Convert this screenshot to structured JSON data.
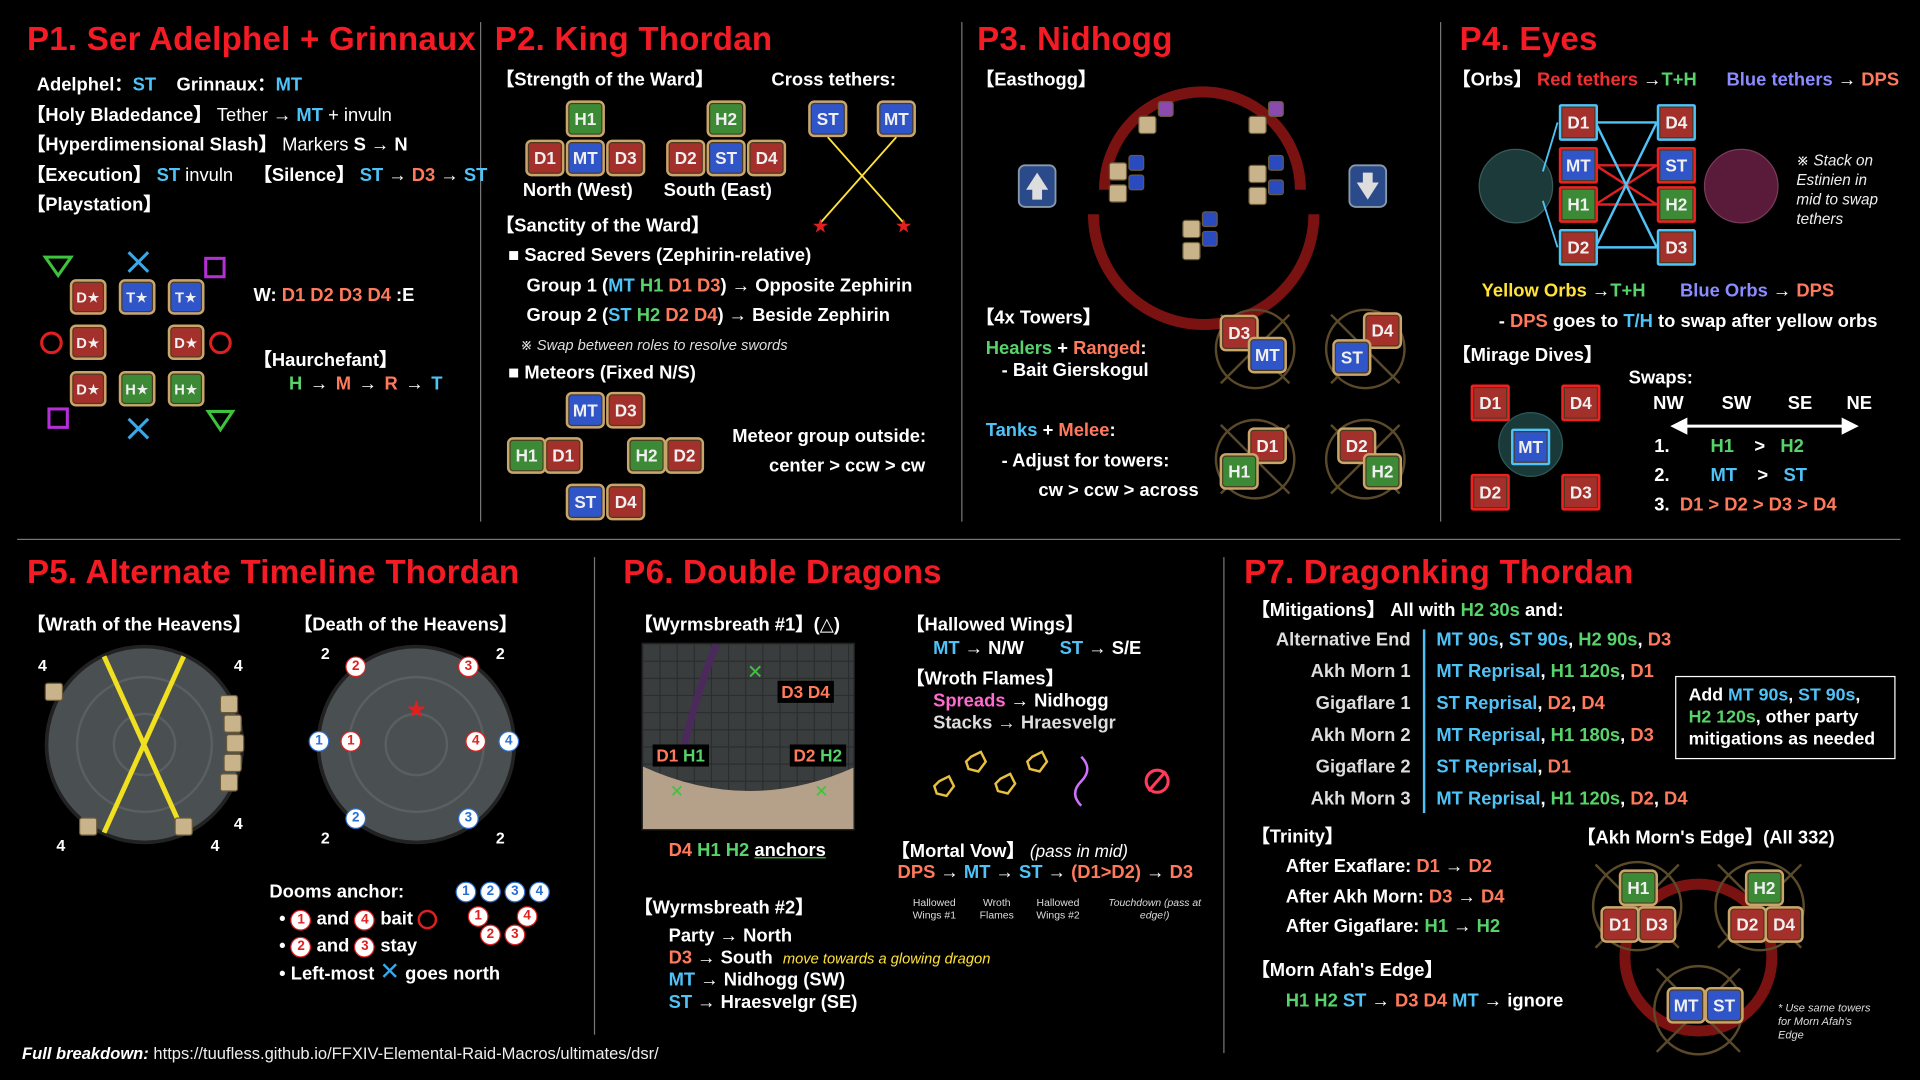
{
  "p1": {
    "title": "P1. Ser Adelphel + Grinnaux",
    "adelphel": "Adelphel：",
    "adelphel_role": "ST",
    "grinnaux": "Grinnaux：",
    "grinnaux_role": "MT",
    "holy_label": "【Holy Bladedance】",
    "holy_a": "Tether →",
    "holy_b": "MT",
    "holy_c": "+ invuln",
    "hyper_label": "【Hyperdimensional Slash】",
    "hyper_a": "Markers",
    "hyper_b": "S → N",
    "exec_label": "【Execution】",
    "exec_a": "ST",
    "exec_b": "invuln",
    "silence_label": "【Silence】",
    "silence_a": "ST",
    "silence_b": "→",
    "silence_c": "D3",
    "silence_d": "→",
    "silence_e": "ST",
    "play_label": "【Playstation】",
    "w_label": "W:",
    "w_roles": "D1 D2 D3 D4",
    "w_end": ":E",
    "haurch_label": "【Haurchefant】",
    "haurch": [
      "H",
      "→",
      "M",
      "→",
      "R",
      "→",
      "T"
    ],
    "markers": [
      "D★",
      "T★",
      "T★",
      "D★",
      "D★",
      "D★",
      "H★",
      "H★"
    ]
  },
  "p2": {
    "title": "P2. King Thordan",
    "strength": "【Strength of the Ward】",
    "cross": "Cross tethers:",
    "north": "North (West)",
    "south": "South (East)",
    "sanctity": "【Sanctity of the Ward】",
    "sacred": "■ Sacred Severs (Zephirin-relative)",
    "g1a": "Group 1 (",
    "g1b": "MT H1 D1 D3",
    "g1c": ") → Opposite Zephirin",
    "g2a": "Group 2 (",
    "g2b": "ST H2 D2 D4",
    "g2c": ") → Beside Zephirin",
    "swap_note": "※ Swap between roles to resolve swords",
    "meteors": "■ Meteors (Fixed N/S)",
    "meteor_group": "Meteor group outside:",
    "meteor_order": "center > ccw > cw",
    "roles": {
      "MT": "MT",
      "ST": "ST",
      "H1": "H1",
      "H2": "H2",
      "D1": "D1",
      "D2": "D2",
      "D3": "D3",
      "D4": "D4"
    }
  },
  "p3": {
    "title": "P3. Nidhogg",
    "easthogg": "【Easthogg】",
    "towers": "【4x Towers】",
    "hr_a": "Healers",
    "hr_b": "+",
    "hr_c": "Ranged",
    "hr_d": ":",
    "bait": "- Bait Gierskogul",
    "tm_a": "Tanks",
    "tm_b": "+",
    "tm_c": "Melee",
    "tm_d": ":",
    "adjust": "- Adjust for towers:",
    "order": "cw > ccw > across"
  },
  "p4": {
    "title": "P4. Eyes",
    "orbs": "【Orbs】",
    "red_t": "Red tethers",
    "red_to": "→",
    "red_r": "T+H",
    "blue_t": "Blue tethers",
    "blue_to": "→",
    "blue_r": "DPS",
    "stack_note": "※ Stack on Estinien in mid to swap tethers",
    "yel_a": "Yellow Orbs",
    "yel_b": "→",
    "yel_c": "T+H",
    "blo_a": "Blue Orbs",
    "blo_b": "→",
    "blo_c": "DPS",
    "dps_a": "-",
    "dps_b": "DPS",
    "dps_c": "goes to",
    "dps_d": "T/H",
    "dps_e": "to swap after yellow orbs",
    "mirage": "【Mirage Dives】",
    "swaps": "Swaps:",
    "dirs": [
      "NW",
      "SW",
      "SE",
      "NE"
    ],
    "s1n": "1.",
    "s1a": "H1",
    "s1g": ">",
    "s1b": "H2",
    "s2n": "2.",
    "s2a": "MT",
    "s2g": ">",
    "s2b": "ST",
    "s3n": "3.",
    "s3a": "D1 > D2 > D3 > D4"
  },
  "p5": {
    "title": "P5. Alternate Timeline Thordan",
    "wrath": "【Wrath of the Heavens】",
    "death": "【Death of the Heavens】",
    "dooms": "Dooms anchor:",
    "b1": "and",
    "b1b": "bait",
    "b2": "and",
    "b2b": "stay",
    "b3": "Left-most",
    "b3b": "goes north",
    "nums": [
      "1",
      "2",
      "3",
      "4"
    ],
    "four": "4",
    "two": "2"
  },
  "p6": {
    "title": "P6. Double Dragons",
    "wb1": "【Wyrmsbreath #1】(△)",
    "anchors_a": "D4",
    "anchors_b": "H1 H2",
    "anchors_c": "anchors",
    "map_d3d4": "D3 D4",
    "map_d1h1": "D1 H1",
    "map_d2h2": "D2 H2",
    "hw": "【Hallowed Wings】",
    "hw_mt": "MT",
    "hw_mt_to": "→ N/W",
    "hw_st": "ST",
    "hw_st_to": "→ S/E",
    "wroth": "【Wroth Flames】",
    "spreads": "Spreads",
    "spreads_to": "→ Nidhogg",
    "stacks": "Stacks → Hraesvelgr",
    "mortal": "【Mortal Vow】",
    "mortal_note": "(pass in mid)",
    "mv": [
      "DPS",
      "→",
      "MT",
      "→",
      "ST",
      "→",
      "(D1>D2)",
      "→",
      "D3"
    ],
    "mv_sub": [
      "Hallowed Wings #1",
      "Wroth Flames",
      "Hallowed Wings #2",
      "Touchdown (pass at edge!)"
    ],
    "wb2": "【Wyrmsbreath #2】",
    "party": "Party → North",
    "d3": "D3",
    "d3_to": "→ South",
    "d3_note": "move towards a glowing dragon",
    "mt": "MT",
    "mt_to": "→ Nidhogg (SW)",
    "st": "ST",
    "st_to": "→ Hraesvelgr (SE)"
  },
  "p7": {
    "title": "P7. Dragonking Thordan",
    "mit_a": "【Mitigations】 All with",
    "mit_b": "H2 30s",
    "mit_c": "and:",
    "rows": [
      {
        "name": "Alternative End",
        "parts": [
          [
            "MT 90s",
            "tank"
          ],
          [
            ", ",
            "wht"
          ],
          [
            "ST 90s",
            "tank"
          ],
          [
            ", ",
            "wht"
          ],
          [
            "H2 90s",
            "heal"
          ],
          [
            ", ",
            "wht"
          ],
          [
            "D3",
            "dps"
          ]
        ]
      },
      {
        "name": "Akh Morn 1",
        "parts": [
          [
            "MT Reprisal",
            "tank"
          ],
          [
            ", ",
            "wht"
          ],
          [
            "H1 120s",
            "heal"
          ],
          [
            ", ",
            "wht"
          ],
          [
            "D1",
            "dps"
          ]
        ]
      },
      {
        "name": "Gigaflare 1",
        "parts": [
          [
            "ST Reprisal",
            "tank"
          ],
          [
            ", ",
            "wht"
          ],
          [
            "D2",
            "dps"
          ],
          [
            ", ",
            "wht"
          ],
          [
            "D4",
            "dps"
          ]
        ]
      },
      {
        "name": "Akh Morn 2",
        "parts": [
          [
            "MT Reprisal",
            "tank"
          ],
          [
            ", ",
            "wht"
          ],
          [
            "H1 180s",
            "heal"
          ],
          [
            ", ",
            "wht"
          ],
          [
            "D3",
            "dps"
          ]
        ]
      },
      {
        "name": "Gigaflare 2",
        "parts": [
          [
            "ST Reprisal",
            "tank"
          ],
          [
            ", ",
            "wht"
          ],
          [
            "D1",
            "dps"
          ]
        ]
      },
      {
        "name": "Akh Morn 3",
        "parts": [
          [
            "MT Reprisal",
            "tank"
          ],
          [
            ", ",
            "wht"
          ],
          [
            "H1 120s",
            "heal"
          ],
          [
            ", ",
            "wht"
          ],
          [
            "D2",
            "dps"
          ],
          [
            ", ",
            "wht"
          ],
          [
            "D4",
            "dps"
          ]
        ]
      }
    ],
    "add_a": "Add",
    "add_b": "MT 90s",
    "add_c": ",",
    "add_d": "ST 90s",
    "add_e": ",",
    "add_f": "H2 120s",
    "add_g": ", other party mitigations as needed",
    "trinity": "【Trinity】",
    "tr1a": "After Exaflare:",
    "tr1b": "D1",
    "tr1c": "→",
    "tr1d": "D2",
    "tr2a": "After Akh Morn:",
    "tr2b": "D3",
    "tr2c": "→",
    "tr2d": "D4",
    "tr3a": "After Gigaflare:",
    "tr3b": "H1",
    "tr3c": "→",
    "tr3d": "H2",
    "akh": "【Akh Morn's Edge】(All 332)",
    "morn": "【Morn Afah's Edge】",
    "morn_a": "H1 H2",
    "morn_b": "ST",
    "morn_c": "→",
    "morn_d": "D3 D4",
    "morn_e": "MT",
    "morn_f": "→ ignore",
    "note": "* Use same towers for Morn Afah's Edge"
  },
  "footer": {
    "label": "Full breakdown:",
    "url": "https://tuufless.github.io/FFXIV-Elemental-Raid-Macros/ultimates/dsr/"
  }
}
